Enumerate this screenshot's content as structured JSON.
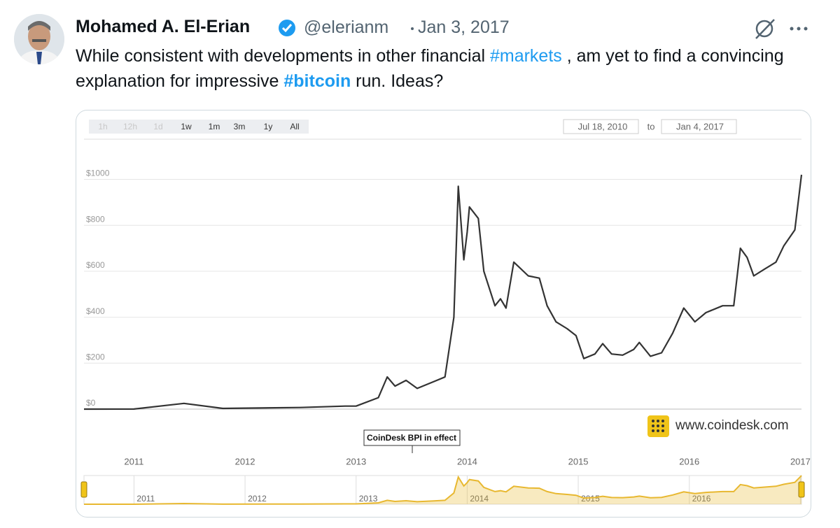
{
  "tweet": {
    "author": "Mohamed A. El-Erian",
    "handle": "@elerianm",
    "date": "Jan 3, 2017",
    "text": [
      "While consistent with developments in other financial ",
      "#markets",
      " , am yet to find a convincing explanation for impressive ",
      "#bitcoin",
      " run. Ideas?"
    ]
  },
  "chart_image": {
    "range_buttons": [
      "1h",
      "12h",
      "1d",
      "1w",
      "1m",
      "3m",
      "1y",
      "All"
    ],
    "date_from": "Jul 18, 2010",
    "date_to_label": "to",
    "date_to": "Jan 4, 2017",
    "annotation": "CoinDesk BPI in effect",
    "watermark": "www.coindesk.com",
    "chart_data": {
      "type": "line",
      "color": "#333333",
      "navigator_color": "#e8b830",
      "x": [
        2010.55,
        2011.0,
        2011.45,
        2011.8,
        2012.5,
        2012.9,
        2013.0,
        2013.2,
        2013.28,
        2013.35,
        2013.45,
        2013.55,
        2013.7,
        2013.8,
        2013.88,
        2013.92,
        2013.97,
        2014.0,
        2014.02,
        2014.1,
        2014.15,
        2014.25,
        2014.3,
        2014.35,
        2014.42,
        2014.55,
        2014.65,
        2014.72,
        2014.8,
        2014.9,
        2014.98,
        2015.05,
        2015.15,
        2015.22,
        2015.3,
        2015.4,
        2015.5,
        2015.55,
        2015.65,
        2015.75,
        2015.85,
        2015.95,
        2016.05,
        2016.15,
        2016.3,
        2016.4,
        2016.46,
        2016.52,
        2016.58,
        2016.68,
        2016.78,
        2016.85,
        2016.95,
        2017.01
      ],
      "values": [
        0.07,
        0.3,
        25,
        3,
        7,
        13,
        13,
        50,
        140,
        100,
        125,
        90,
        120,
        140,
        400,
        970,
        650,
        770,
        880,
        830,
        600,
        450,
        480,
        440,
        640,
        580,
        570,
        450,
        380,
        350,
        320,
        220,
        240,
        285,
        240,
        235,
        260,
        290,
        230,
        245,
        330,
        440,
        380,
        420,
        450,
        450,
        700,
        660,
        580,
        610,
        640,
        710,
        780,
        1020
      ],
      "xlim": [
        2010.55,
        2017.01
      ],
      "ylim": [
        0,
        1175
      ],
      "xticks": [
        2011,
        2012,
        2013,
        2014,
        2015,
        2016,
        2017
      ],
      "yticks": [
        {
          "value": 0,
          "label": "$0"
        },
        {
          "value": 200,
          "label": "$200"
        },
        {
          "value": 400,
          "label": "$400"
        },
        {
          "value": 600,
          "label": "$600"
        },
        {
          "value": 800,
          "label": "$800"
        },
        {
          "value": 1000,
          "label": "$1000"
        }
      ],
      "grid": true
    }
  }
}
